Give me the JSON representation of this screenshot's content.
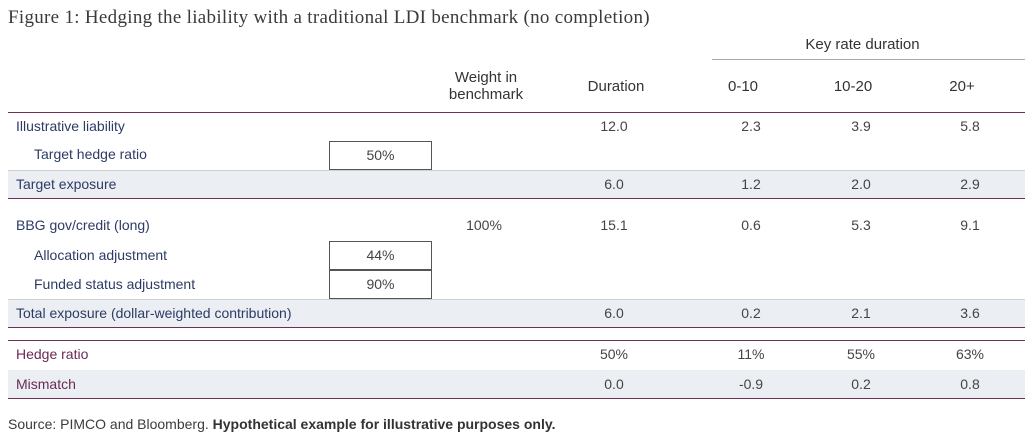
{
  "title": "Figure 1: Hedging the liability with a traditional LDI benchmark (no completion)",
  "headers": {
    "key_rate_duration": "Key rate duration",
    "weight_line1": "Weight in",
    "weight_line2": "benchmark",
    "duration": "Duration",
    "k1": "0-10",
    "k2": "10-20",
    "k3": "20+"
  },
  "rows": {
    "liability": {
      "label": "Illustrative liability",
      "duration": "12.0",
      "k1": "2.3",
      "k2": "3.9",
      "k3": "5.8"
    },
    "target_hedge": {
      "label": "Target hedge ratio",
      "box": "50%"
    },
    "target_exposure": {
      "label": "Target exposure",
      "duration": "6.0",
      "k1": "1.2",
      "k2": "2.0",
      "k3": "2.9"
    },
    "bbg": {
      "label": "BBG gov/credit (long)",
      "weight": "100%",
      "duration": "15.1",
      "k1": "0.6",
      "k2": "5.3",
      "k3": "9.1"
    },
    "allocation_adj": {
      "label": "Allocation adjustment",
      "box": "44%"
    },
    "funded_adj": {
      "label": "Funded status adjustment",
      "box": "90%"
    },
    "total_exposure": {
      "label": "Total exposure (dollar-weighted contribution)",
      "duration": "6.0",
      "k1": "0.2",
      "k2": "2.1",
      "k3": "3.6"
    },
    "hedge_ratio": {
      "label": "Hedge ratio",
      "duration": "50%",
      "k1": "11%",
      "k2": "55%",
      "k3": "63%"
    },
    "mismatch": {
      "label": "Mismatch",
      "duration": "0.0",
      "k1": "-0.9",
      "k2": "0.2",
      "k3": "0.8"
    }
  },
  "source": {
    "prefix": "Source: PIMCO and Bloomberg. ",
    "bold": "Hypothetical example for illustrative purposes only."
  },
  "colors": {
    "accent_purple": "#6d2f58",
    "label_navy": "#2e3b64",
    "band": "#ebeef3"
  }
}
